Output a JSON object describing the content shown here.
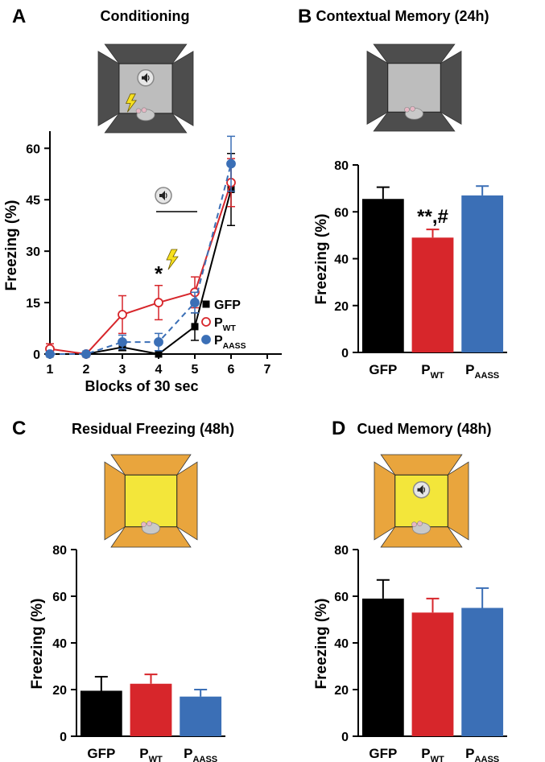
{
  "chart_data": [
    {
      "type": "line",
      "panel": "A",
      "title": "Conditioning",
      "xlabel": "Blocks of 30 sec",
      "ylabel": "Freezing (%)",
      "x": [
        1,
        2,
        3,
        4,
        5,
        6
      ],
      "xlim": [
        1,
        7.4
      ],
      "xticks": [
        1,
        2,
        3,
        4,
        5,
        6,
        7
      ],
      "ylim": [
        0,
        65
      ],
      "yticks": [
        0,
        15,
        30,
        45,
        60
      ],
      "series": [
        {
          "name": "GFP",
          "color": "#000000",
          "marker": "square",
          "line_style": "solid",
          "values": [
            0,
            0,
            2,
            0,
            8,
            48
          ],
          "errors": [
            0,
            0,
            1,
            0,
            4,
            10.5
          ]
        },
        {
          "name": "P",
          "name_subscript": "WT",
          "color": "#d7262b",
          "marker": "open-circle",
          "line_style": "solid",
          "values": [
            1.5,
            0,
            11.5,
            15,
            18,
            50
          ],
          "errors": [
            1.5,
            0,
            5.5,
            5,
            4.5,
            7
          ]
        },
        {
          "name": "P",
          "name_subscript": "AASS",
          "color": "#3b6fb6",
          "marker": "circle",
          "line_style": "dashed",
          "values": [
            0,
            0,
            3.5,
            3.5,
            15,
            55.5
          ],
          "errors": [
            0,
            0,
            2,
            2.5,
            3,
            8
          ]
        }
      ],
      "annotations": [
        {
          "text": "*",
          "x": 4
        }
      ]
    },
    {
      "type": "bar",
      "panel": "B",
      "title": "Contextual Memory (24h)",
      "ylabel": "Freezing (%)",
      "categories": [
        "GFP",
        "P",
        "P"
      ],
      "category_subscripts": [
        null,
        "WT",
        "AASS"
      ],
      "values": [
        65.5,
        49,
        67
      ],
      "errors": [
        5,
        3.5,
        4
      ],
      "colors": [
        "#000000",
        "#d7262b",
        "#3b6fb6"
      ],
      "ylim": [
        0,
        80
      ],
      "yticks": [
        0,
        20,
        40,
        60,
        80
      ],
      "annotations": [
        {
          "text": "**,#",
          "category_index": 1
        }
      ]
    },
    {
      "type": "bar",
      "panel": "C",
      "title": "Residual Freezing (48h)",
      "ylabel": "Freezing (%)",
      "categories": [
        "GFP",
        "P",
        "P"
      ],
      "category_subscripts": [
        null,
        "WT",
        "AASS"
      ],
      "values": [
        19.5,
        22.5,
        17
      ],
      "errors": [
        6,
        4,
        3
      ],
      "colors": [
        "#000000",
        "#d7262b",
        "#3b6fb6"
      ],
      "ylim": [
        0,
        80
      ],
      "yticks": [
        0,
        20,
        40,
        60,
        80
      ]
    },
    {
      "type": "bar",
      "panel": "D",
      "title": "Cued Memory (48h)",
      "ylabel": "Freezing (%)",
      "categories": [
        "GFP",
        "P",
        "P"
      ],
      "category_subscripts": [
        null,
        "WT",
        "AASS"
      ],
      "values": [
        59,
        53,
        55
      ],
      "errors": [
        8,
        6,
        8.5
      ],
      "colors": [
        "#000000",
        "#d7262b",
        "#3b6fb6"
      ],
      "ylim": [
        0,
        80
      ],
      "yticks": [
        0,
        20,
        40,
        60,
        80
      ]
    }
  ]
}
